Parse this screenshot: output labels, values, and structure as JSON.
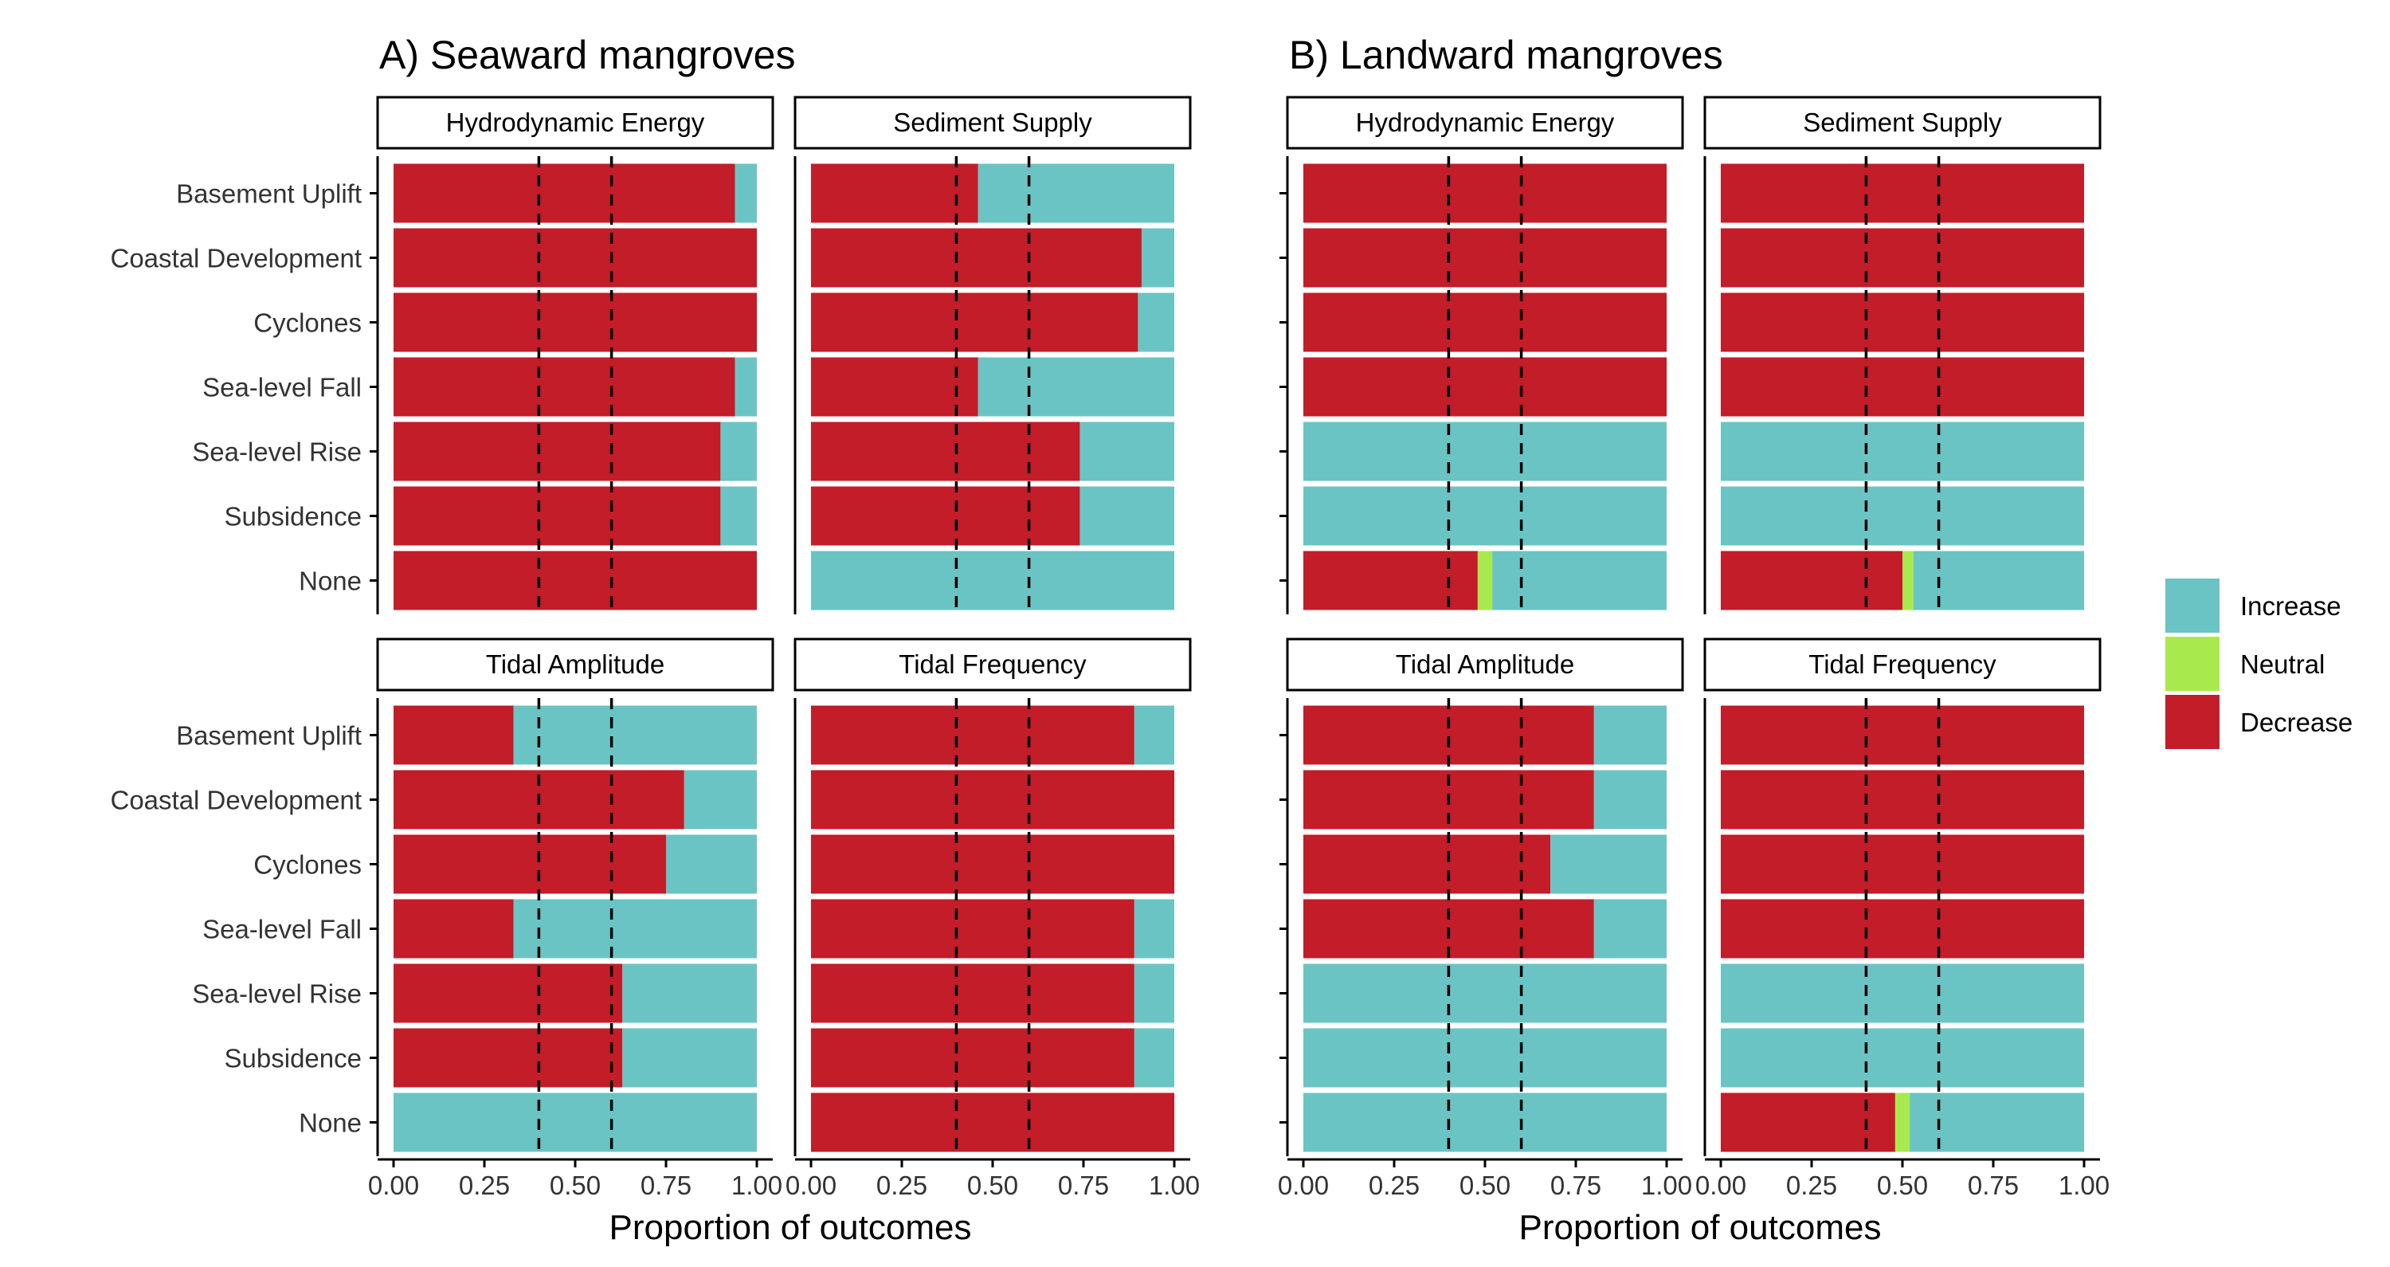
{
  "chart_data": {
    "type": "bar",
    "orientation": "horizontal",
    "stacked": true,
    "categories": [
      "Basement Uplift",
      "Coastal Development",
      "Cyclones",
      "Sea-level Fall",
      "Sea-level Rise",
      "Subsidence",
      "None"
    ],
    "x_ticks": [
      "0.00",
      "0.25",
      "0.50",
      "0.75",
      "1.00"
    ],
    "xlim": [
      0,
      1
    ],
    "reference_lines": [
      0.4,
      0.6
    ],
    "legend": {
      "placement": "right",
      "entries": [
        {
          "label": "Increase",
          "color": "#6bc4c4"
        },
        {
          "label": "Neutral",
          "color": "#a8ea4e"
        },
        {
          "label": "Decrease",
          "color": "#c21d28"
        }
      ]
    },
    "groups": [
      {
        "title": "A) Seaward mangroves",
        "xlabel": "Proportion of outcomes",
        "facets": [
          {
            "label": "Hydrodynamic Energy",
            "series": [
              {
                "name": "Decrease",
                "values": [
                  0.94,
                  1.0,
                  1.0,
                  0.94,
                  0.9,
                  0.9,
                  1.0
                ]
              },
              {
                "name": "Neutral",
                "values": [
                  0,
                  0,
                  0,
                  0,
                  0,
                  0,
                  0
                ]
              },
              {
                "name": "Increase",
                "values": [
                  0.06,
                  0.0,
                  0.0,
                  0.06,
                  0.1,
                  0.1,
                  0.0
                ]
              }
            ]
          },
          {
            "label": "Sediment Supply",
            "series": [
              {
                "name": "Decrease",
                "values": [
                  0.46,
                  0.91,
                  0.9,
                  0.46,
                  0.74,
                  0.74,
                  0.0
                ]
              },
              {
                "name": "Neutral",
                "values": [
                  0,
                  0,
                  0,
                  0,
                  0,
                  0,
                  0
                ]
              },
              {
                "name": "Increase",
                "values": [
                  0.54,
                  0.09,
                  0.1,
                  0.54,
                  0.26,
                  0.26,
                  1.0
                ]
              }
            ]
          },
          {
            "label": "Tidal Amplitude",
            "series": [
              {
                "name": "Decrease",
                "values": [
                  0.33,
                  0.8,
                  0.75,
                  0.33,
                  0.63,
                  0.63,
                  0.0
                ]
              },
              {
                "name": "Neutral",
                "values": [
                  0,
                  0,
                  0,
                  0,
                  0,
                  0,
                  0
                ]
              },
              {
                "name": "Increase",
                "values": [
                  0.67,
                  0.2,
                  0.25,
                  0.67,
                  0.37,
                  0.37,
                  1.0
                ]
              }
            ]
          },
          {
            "label": "Tidal Frequency",
            "series": [
              {
                "name": "Decrease",
                "values": [
                  0.89,
                  1.0,
                  1.0,
                  0.89,
                  0.89,
                  0.89,
                  1.0
                ]
              },
              {
                "name": "Neutral",
                "values": [
                  0,
                  0,
                  0,
                  0,
                  0,
                  0,
                  0
                ]
              },
              {
                "name": "Increase",
                "values": [
                  0.11,
                  0.0,
                  0.0,
                  0.11,
                  0.11,
                  0.11,
                  0.0
                ]
              }
            ]
          }
        ]
      },
      {
        "title": "B) Landward mangroves",
        "xlabel": "Proportion of outcomes",
        "facets": [
          {
            "label": "Hydrodynamic Energy",
            "series": [
              {
                "name": "Decrease",
                "values": [
                  1.0,
                  1.0,
                  1.0,
                  1.0,
                  0.0,
                  0.0,
                  0.48
                ]
              },
              {
                "name": "Neutral",
                "values": [
                  0,
                  0,
                  0,
                  0,
                  0,
                  0,
                  0.04
                ]
              },
              {
                "name": "Increase",
                "values": [
                  0.0,
                  0.0,
                  0.0,
                  0.0,
                  1.0,
                  1.0,
                  0.48
                ]
              }
            ]
          },
          {
            "label": "Sediment Supply",
            "series": [
              {
                "name": "Decrease",
                "values": [
                  1.0,
                  1.0,
                  1.0,
                  1.0,
                  0.0,
                  0.0,
                  0.5
                ]
              },
              {
                "name": "Neutral",
                "values": [
                  0,
                  0,
                  0,
                  0,
                  0,
                  0,
                  0.03
                ]
              },
              {
                "name": "Increase",
                "values": [
                  0.0,
                  0.0,
                  0.0,
                  0.0,
                  1.0,
                  1.0,
                  0.47
                ]
              }
            ]
          },
          {
            "label": "Tidal Amplitude",
            "series": [
              {
                "name": "Decrease",
                "values": [
                  0.8,
                  0.8,
                  0.68,
                  0.8,
                  0.0,
                  0.0,
                  0.0
                ]
              },
              {
                "name": "Neutral",
                "values": [
                  0,
                  0,
                  0,
                  0,
                  0,
                  0,
                  0
                ]
              },
              {
                "name": "Increase",
                "values": [
                  0.2,
                  0.2,
                  0.32,
                  0.2,
                  1.0,
                  1.0,
                  1.0
                ]
              }
            ]
          },
          {
            "label": "Tidal Frequency",
            "series": [
              {
                "name": "Decrease",
                "values": [
                  1.0,
                  1.0,
                  1.0,
                  1.0,
                  0.0,
                  0.0,
                  0.48
                ]
              },
              {
                "name": "Neutral",
                "values": [
                  0,
                  0,
                  0,
                  0,
                  0,
                  0,
                  0.04
                ]
              },
              {
                "name": "Increase",
                "values": [
                  0.0,
                  0.0,
                  0.0,
                  0.0,
                  1.0,
                  1.0,
                  0.48
                ]
              }
            ]
          }
        ]
      }
    ]
  }
}
